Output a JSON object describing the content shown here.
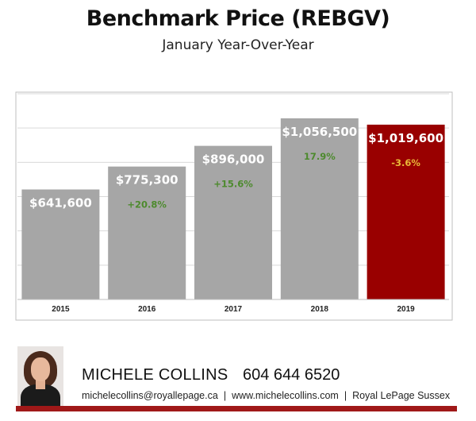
{
  "chart_data": {
    "type": "bar",
    "title": "Benchmark Price (REBGV)",
    "subtitle": "January Year-Over-Year",
    "categories": [
      "2015",
      "2016",
      "2017",
      "2018",
      "2019"
    ],
    "values": [
      641600,
      775300,
      896000,
      1056500,
      1019600
    ],
    "value_labels": [
      "$641,600",
      "$775,300",
      "$896,000",
      "$1,056,500",
      "$1,019,600"
    ],
    "change_labels": [
      "",
      "+20.8%",
      "+15.6%",
      "17.9%",
      "-3.6%"
    ],
    "ylim": [
      0,
      1200000
    ],
    "grid": true,
    "colors": {
      "bar": "#a6a6a6",
      "highlight_bar": "#990000",
      "change_positive": "#4d8a2e",
      "change_negative": "#e9b938",
      "grid": "#d9d9d9"
    },
    "highlight_index": 4
  },
  "contact": {
    "name": "MICHELE COLLINS",
    "phone": "604 644 6520",
    "email": "michelecollins@royallepage.ca",
    "website": "www.michelecollins.com",
    "company": "Royal LePage Sussex",
    "separator": "|"
  },
  "colors": {
    "brand_bar": "#a01818"
  }
}
